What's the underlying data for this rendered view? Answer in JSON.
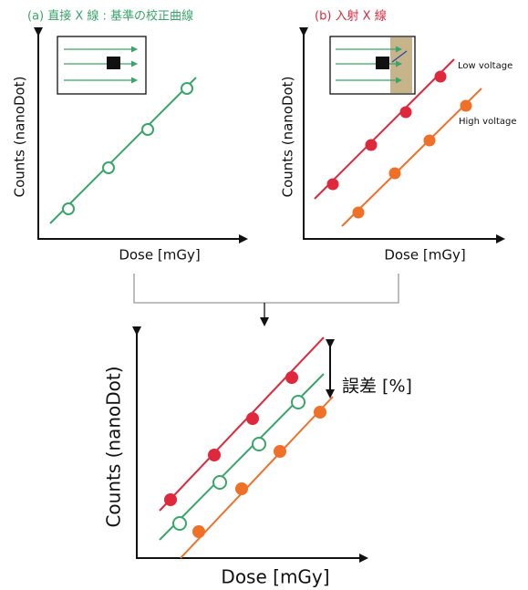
{
  "panel_a": {
    "title": "(a) 直接 X 線 : 基準の校正曲線",
    "y_label": "Counts (nanoDot)",
    "x_label": "Dose [mGy]"
  },
  "panel_b": {
    "title": "(b) 入射 X 線",
    "y_label": "Counts (nanoDot)",
    "x_label": "Dose [mGy]",
    "low_label": "Low voltage",
    "high_label": "High voltage"
  },
  "panel_c": {
    "y_label": "Counts (nanoDot)",
    "x_label": "Dose [mGy]",
    "error_label": "誤差 [%]"
  }
}
